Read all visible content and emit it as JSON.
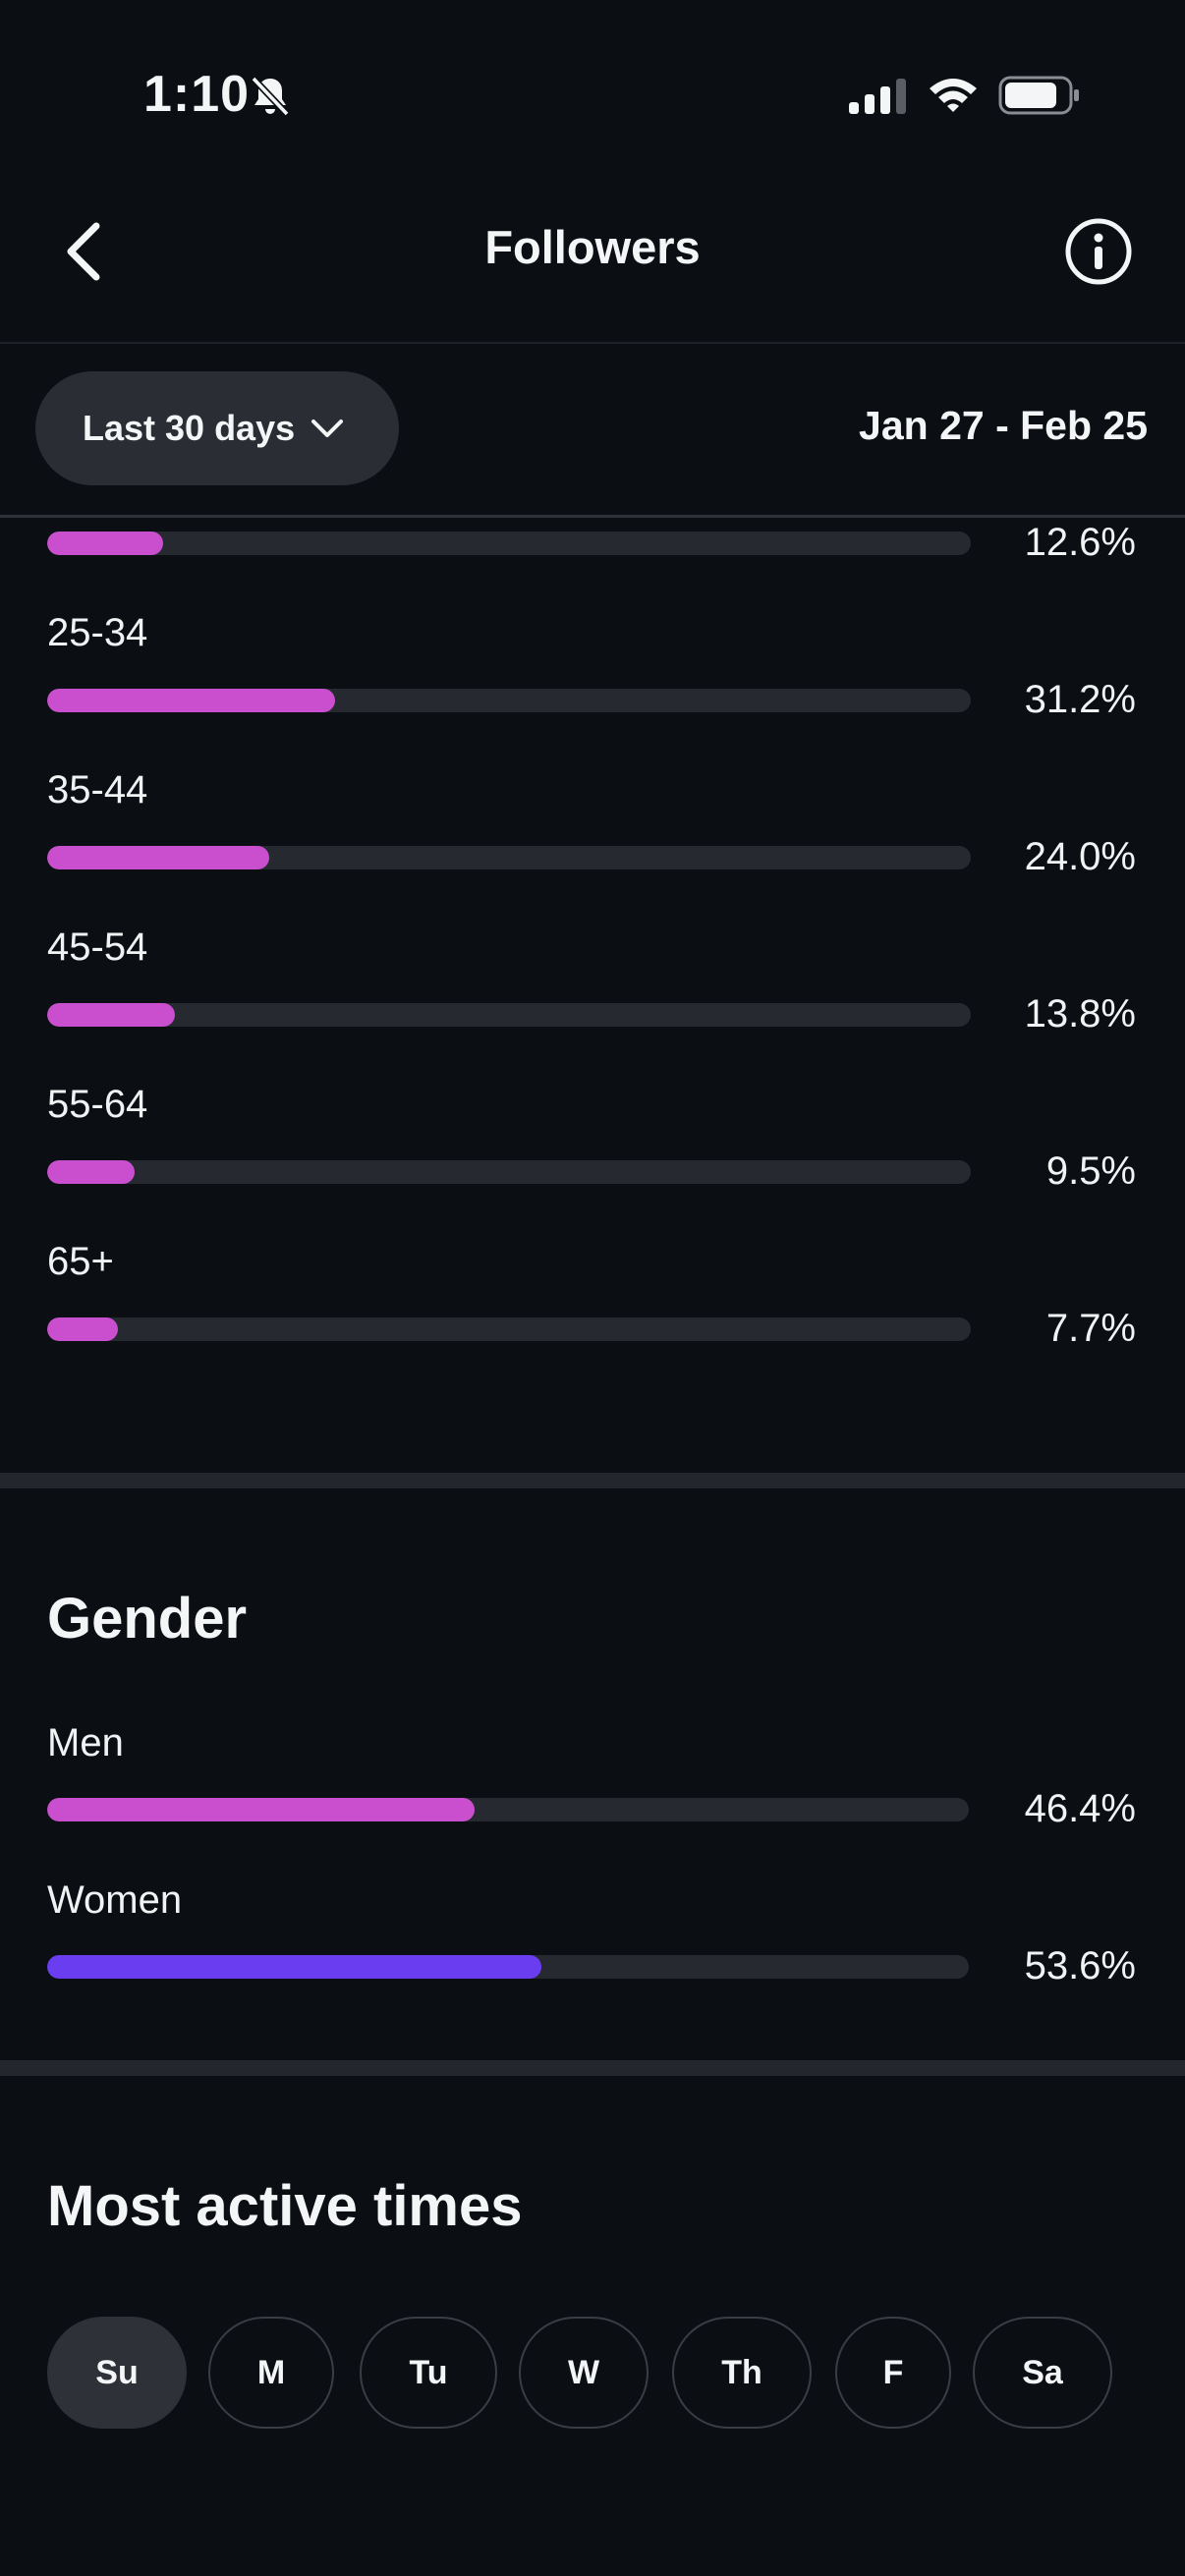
{
  "status_bar": {
    "time": "1:10"
  },
  "header": {
    "title": "Followers"
  },
  "filter": {
    "range_label": "Last 30 days",
    "date_range": "Jan 27 - Feb 25"
  },
  "age": {
    "rows": [
      {
        "label": "",
        "value": "12.6%",
        "fraction": 0.126
      },
      {
        "label": "25-34",
        "value": "31.2%",
        "fraction": 0.312
      },
      {
        "label": "35-44",
        "value": "24.0%",
        "fraction": 0.24
      },
      {
        "label": "45-54",
        "value": "13.8%",
        "fraction": 0.138
      },
      {
        "label": "55-64",
        "value": "9.5%",
        "fraction": 0.095
      },
      {
        "label": "65+",
        "value": "7.7%",
        "fraction": 0.077
      }
    ]
  },
  "gender": {
    "title": "Gender",
    "rows": [
      {
        "label": "Men",
        "value": "46.4%",
        "fraction": 0.464
      },
      {
        "label": "Women",
        "value": "53.6%",
        "fraction": 0.536
      }
    ]
  },
  "active_times": {
    "title": "Most active times",
    "days": [
      "Su",
      "M",
      "Tu",
      "W",
      "Th",
      "F",
      "Sa"
    ],
    "selected": "Su"
  },
  "colors": {
    "age_bar": "#c94fcf",
    "men_bar": "#c94fcf",
    "women_bar": "#6a3df0",
    "track": "#26292f",
    "background": "#0b0e13"
  }
}
